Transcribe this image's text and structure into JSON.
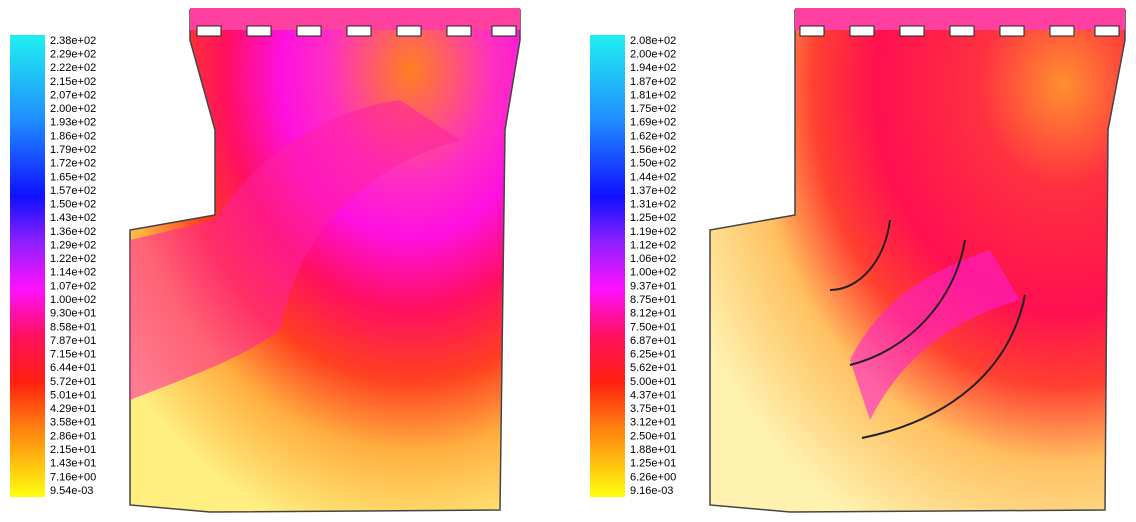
{
  "panels": [
    {
      "colorbar": {
        "labels": [
          "2.38e+02",
          "2.29e+02",
          "2.22e+02",
          "2.15e+02",
          "2.07e+02",
          "2.00e+02",
          "1.93e+02",
          "1.86e+02",
          "1.79e+02",
          "1.72e+02",
          "1.65e+02",
          "1.57e+02",
          "1.50e+02",
          "1.43e+02",
          "1.36e+02",
          "1.29e+02",
          "1.22e+02",
          "1.14e+02",
          "1.07e+02",
          "1.00e+02",
          "9.30e+01",
          "8.58e+01",
          "7.87e+01",
          "7.15e+01",
          "6.44e+01",
          "5.72e+01",
          "5.01e+01",
          "4.29e+01",
          "3.58e+01",
          "2.86e+01",
          "2.15e+01",
          "1.43e+01",
          "7.16e+00",
          "9.54e-03"
        ]
      }
    },
    {
      "colorbar": {
        "labels": [
          "2.08e+02",
          "2.00e+02",
          "1.94e+02",
          "1.87e+02",
          "1.81e+02",
          "1.75e+02",
          "1.69e+02",
          "1.62e+02",
          "1.56e+02",
          "1.50e+02",
          "1.44e+02",
          "1.37e+02",
          "1.31e+02",
          "1.25e+02",
          "1.19e+02",
          "1.12e+02",
          "1.06e+02",
          "1.00e+02",
          "9.37e+01",
          "8.75e+01",
          "8.12e+01",
          "7.50e+01",
          "6.87e+01",
          "6.25e+01",
          "5.62e+01",
          "5.00e+01",
          "4.37e+01",
          "3.75e+01",
          "3.12e+01",
          "2.50e+01",
          "1.88e+01",
          "1.25e+01",
          "6.26e+00",
          "9.16e-03"
        ]
      }
    }
  ]
}
